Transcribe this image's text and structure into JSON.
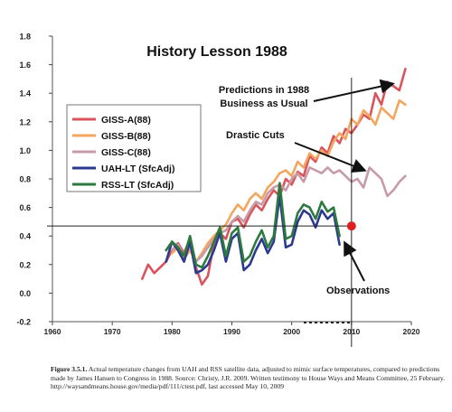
{
  "chart_data": {
    "type": "line",
    "title": "History Lesson 1988",
    "xlabel": "",
    "ylabel": "",
    "xlim": [
      1960,
      2020
    ],
    "ylim": [
      -0.2,
      1.8
    ],
    "x_ticks": [
      "1960",
      "1970",
      "1980",
      "1990",
      "2000",
      "2010",
      "2020"
    ],
    "y_ticks": [
      "-0.2",
      "0.0",
      "0.2",
      "0.4",
      "0.6",
      "0.8",
      "1.0",
      "1.2",
      "1.4",
      "1.6",
      "1.8"
    ],
    "legend_position": "left",
    "series": [
      {
        "name": "GISS-A(88)",
        "color": "#d9545c",
        "points": [
          [
            1975,
            0.1
          ],
          [
            1976,
            0.2
          ],
          [
            1977,
            0.14
          ],
          [
            1978,
            0.18
          ],
          [
            1979,
            0.22
          ],
          [
            1980,
            0.3
          ],
          [
            1981,
            0.35
          ],
          [
            1982,
            0.28
          ],
          [
            1983,
            0.38
          ],
          [
            1984,
            0.18
          ],
          [
            1985,
            0.06
          ],
          [
            1986,
            0.12
          ],
          [
            1987,
            0.35
          ],
          [
            1988,
            0.42
          ],
          [
            1989,
            0.38
          ],
          [
            1990,
            0.5
          ],
          [
            1991,
            0.52
          ],
          [
            1992,
            0.46
          ],
          [
            1993,
            0.55
          ],
          [
            1994,
            0.62
          ],
          [
            1995,
            0.58
          ],
          [
            1996,
            0.66
          ],
          [
            1997,
            0.72
          ],
          [
            1998,
            0.68
          ],
          [
            1999,
            0.8
          ],
          [
            2000,
            0.76
          ],
          [
            2001,
            0.85
          ],
          [
            2002,
            0.82
          ],
          [
            2003,
            0.96
          ],
          [
            2004,
            0.92
          ],
          [
            2005,
            1.02
          ],
          [
            2006,
            0.98
          ],
          [
            2007,
            1.1
          ],
          [
            2008,
            1.05
          ],
          [
            2009,
            1.15
          ],
          [
            2010,
            1.12
          ],
          [
            2011,
            1.18
          ],
          [
            2012,
            1.25
          ],
          [
            2013,
            1.22
          ],
          [
            2014,
            1.4
          ],
          [
            2015,
            1.32
          ],
          [
            2016,
            1.48
          ],
          [
            2017,
            1.45
          ],
          [
            2018,
            1.42
          ],
          [
            2019,
            1.57
          ]
        ]
      },
      {
        "name": "GISS-B(88)",
        "color": "#f4a55e",
        "points": [
          [
            1980,
            0.28
          ],
          [
            1981,
            0.32
          ],
          [
            1982,
            0.24
          ],
          [
            1983,
            0.3
          ],
          [
            1984,
            0.22
          ],
          [
            1985,
            0.28
          ],
          [
            1986,
            0.35
          ],
          [
            1987,
            0.4
          ],
          [
            1988,
            0.44
          ],
          [
            1989,
            0.48
          ],
          [
            1990,
            0.56
          ],
          [
            1991,
            0.62
          ],
          [
            1992,
            0.58
          ],
          [
            1993,
            0.66
          ],
          [
            1994,
            0.7
          ],
          [
            1995,
            0.66
          ],
          [
            1996,
            0.74
          ],
          [
            1997,
            0.78
          ],
          [
            1998,
            0.84
          ],
          [
            1999,
            0.86
          ],
          [
            2000,
            0.82
          ],
          [
            2001,
            0.92
          ],
          [
            2002,
            0.88
          ],
          [
            2003,
            0.98
          ],
          [
            2004,
            0.94
          ],
          [
            2005,
            1.0
          ],
          [
            2006,
            0.96
          ],
          [
            2007,
            1.06
          ],
          [
            2008,
            1.12
          ],
          [
            2009,
            1.08
          ],
          [
            2010,
            1.22
          ],
          [
            2011,
            1.18
          ],
          [
            2012,
            1.28
          ],
          [
            2013,
            1.24
          ],
          [
            2014,
            1.18
          ],
          [
            2015,
            1.3
          ],
          [
            2016,
            1.26
          ],
          [
            2017,
            1.22
          ],
          [
            2018,
            1.35
          ],
          [
            2019,
            1.32
          ]
        ]
      },
      {
        "name": "GISS-C(88)",
        "color": "#c89aa8",
        "points": [
          [
            1980,
            0.3
          ],
          [
            1981,
            0.34
          ],
          [
            1982,
            0.26
          ],
          [
            1983,
            0.32
          ],
          [
            1984,
            0.22
          ],
          [
            1985,
            0.26
          ],
          [
            1986,
            0.32
          ],
          [
            1987,
            0.38
          ],
          [
            1988,
            0.42
          ],
          [
            1989,
            0.44
          ],
          [
            1990,
            0.5
          ],
          [
            1991,
            0.54
          ],
          [
            1992,
            0.5
          ],
          [
            1993,
            0.58
          ],
          [
            1994,
            0.64
          ],
          [
            1995,
            0.62
          ],
          [
            1996,
            0.7
          ],
          [
            1997,
            0.74
          ],
          [
            1998,
            0.76
          ],
          [
            1999,
            0.72
          ],
          [
            2000,
            0.8
          ],
          [
            2001,
            0.84
          ],
          [
            2002,
            0.78
          ],
          [
            2003,
            0.88
          ],
          [
            2004,
            0.86
          ],
          [
            2005,
            0.84
          ],
          [
            2006,
            0.88
          ],
          [
            2007,
            0.84
          ],
          [
            2008,
            0.86
          ],
          [
            2009,
            0.82
          ],
          [
            2010,
            0.78
          ],
          [
            2011,
            0.8
          ],
          [
            2012,
            0.74
          ],
          [
            2013,
            0.88
          ],
          [
            2014,
            0.84
          ],
          [
            2015,
            0.8
          ],
          [
            2016,
            0.68
          ],
          [
            2017,
            0.72
          ],
          [
            2018,
            0.78
          ],
          [
            2019,
            0.82
          ]
        ]
      },
      {
        "name": "UAH-LT (SfcAdj)",
        "color": "#2b3a8f",
        "points": [
          [
            1979,
            0.22
          ],
          [
            1980,
            0.36
          ],
          [
            1981,
            0.3
          ],
          [
            1982,
            0.22
          ],
          [
            1983,
            0.36
          ],
          [
            1984,
            0.14
          ],
          [
            1985,
            0.16
          ],
          [
            1986,
            0.2
          ],
          [
            1987,
            0.3
          ],
          [
            1988,
            0.42
          ],
          [
            1989,
            0.22
          ],
          [
            1990,
            0.38
          ],
          [
            1991,
            0.42
          ],
          [
            1992,
            0.16
          ],
          [
            1993,
            0.2
          ],
          [
            1994,
            0.3
          ],
          [
            1995,
            0.38
          ],
          [
            1996,
            0.28
          ],
          [
            1997,
            0.36
          ],
          [
            1998,
            0.68
          ],
          [
            1999,
            0.32
          ],
          [
            2000,
            0.34
          ],
          [
            2001,
            0.5
          ],
          [
            2002,
            0.58
          ],
          [
            2003,
            0.55
          ],
          [
            2004,
            0.46
          ],
          [
            2005,
            0.58
          ],
          [
            2006,
            0.52
          ],
          [
            2007,
            0.56
          ],
          [
            2008,
            0.34
          ]
        ]
      },
      {
        "name": "RSS-LT (SfcAdj)",
        "color": "#2e7a3e",
        "points": [
          [
            1979,
            0.3
          ],
          [
            1980,
            0.36
          ],
          [
            1981,
            0.32
          ],
          [
            1982,
            0.26
          ],
          [
            1983,
            0.4
          ],
          [
            1984,
            0.2
          ],
          [
            1985,
            0.18
          ],
          [
            1986,
            0.26
          ],
          [
            1987,
            0.36
          ],
          [
            1988,
            0.46
          ],
          [
            1989,
            0.26
          ],
          [
            1990,
            0.42
          ],
          [
            1991,
            0.46
          ],
          [
            1992,
            0.22
          ],
          [
            1993,
            0.26
          ],
          [
            1994,
            0.36
          ],
          [
            1995,
            0.44
          ],
          [
            1996,
            0.32
          ],
          [
            1997,
            0.4
          ],
          [
            1998,
            0.77
          ],
          [
            1999,
            0.38
          ],
          [
            2000,
            0.4
          ],
          [
            2001,
            0.56
          ],
          [
            2002,
            0.62
          ],
          [
            2003,
            0.6
          ],
          [
            2004,
            0.52
          ],
          [
            2005,
            0.64
          ],
          [
            2006,
            0.57
          ],
          [
            2007,
            0.6
          ],
          [
            2008,
            0.4
          ]
        ]
      }
    ],
    "annotations": [
      {
        "text": "Predictions in 1988",
        "text2": "Business as Usual"
      },
      {
        "text": "Drastic Cuts"
      },
      {
        "text": "Observations"
      }
    ],
    "marker": {
      "x": 2010,
      "y": 0.47,
      "color": "#e02020"
    }
  },
  "caption": {
    "label": "Figure 3.5.1.",
    "text": " Actual temperature changes from UAH and RSS satellite data, adjusted to mimic surface temperatures, compared to predictions made by James Hansen to Congress in 1988. Source: Christy, J.R. 2009. Written testimony to House Ways and Means Committee, 25 February. http://waysandmeans.house.gov/media/pdf/111/ctest.pdf, last accessed May 10, 2009"
  }
}
